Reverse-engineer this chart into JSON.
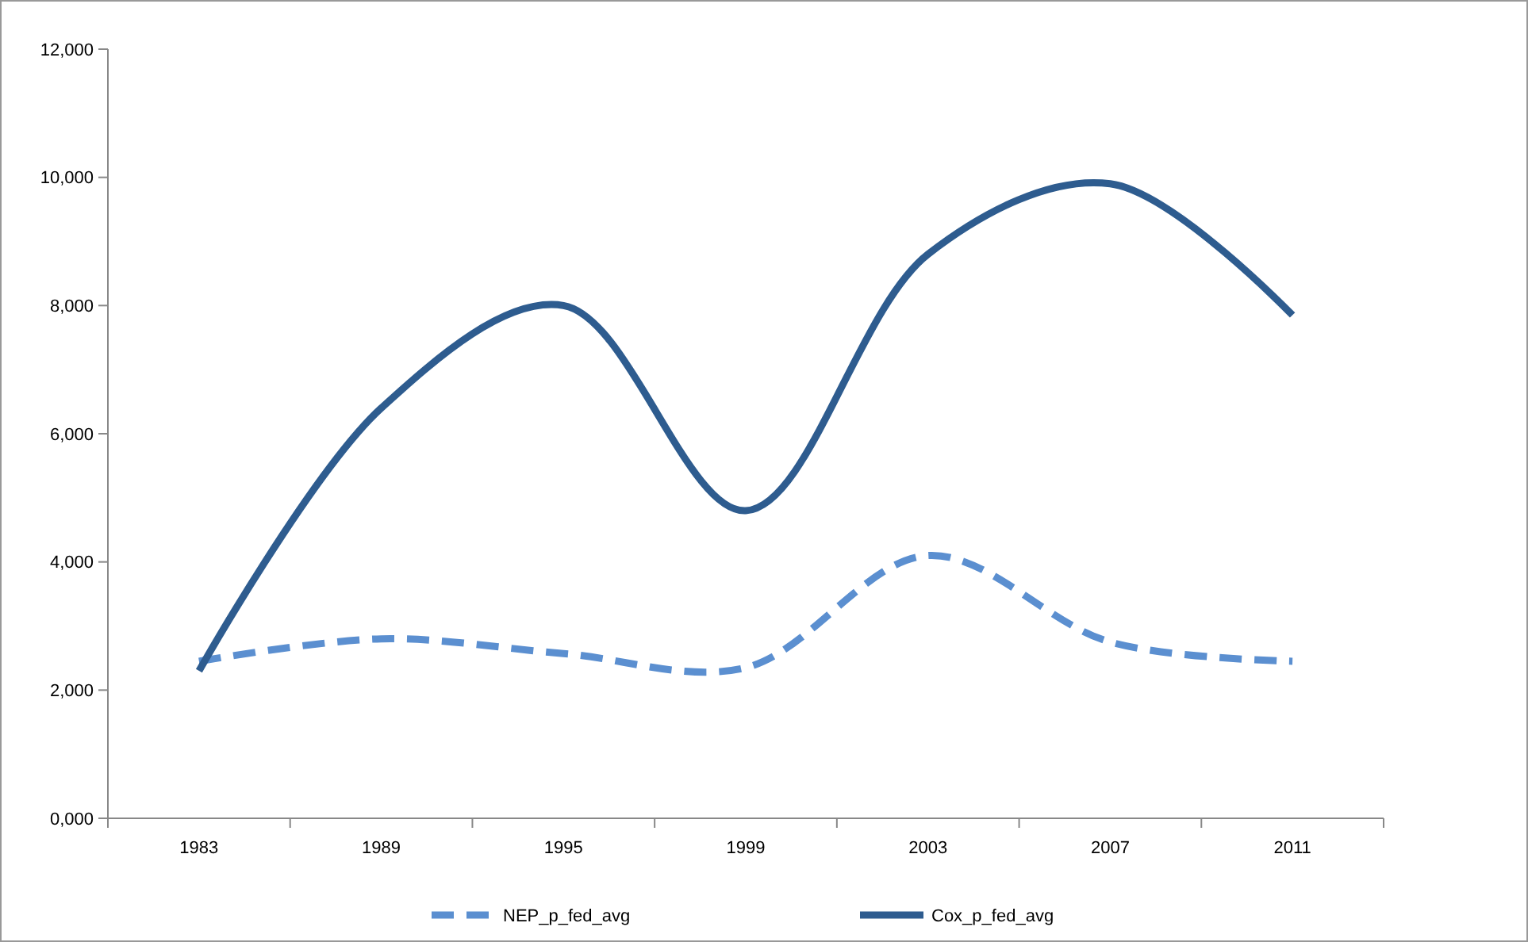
{
  "chart_data": {
    "type": "line",
    "categories": [
      "1983",
      "1989",
      "1995",
      "1999",
      "2003",
      "2007",
      "2011"
    ],
    "series": [
      {
        "name": "NEP_p_fed_avg",
        "color": "#5b8fd0",
        "line_style": "dashed",
        "values": [
          2450,
          2800,
          2570,
          2350,
          4100,
          2750,
          2450
        ]
      },
      {
        "name": "Cox_p_fed_avg",
        "color": "#2e5c8f",
        "line_style": "solid",
        "values": [
          2300,
          6400,
          8000,
          4800,
          8800,
          9900,
          7850
        ]
      }
    ],
    "ylim": [
      0,
      12000
    ],
    "yticks": [
      {
        "value": 0,
        "label": "0,000"
      },
      {
        "value": 2000,
        "label": "2,000"
      },
      {
        "value": 4000,
        "label": "4,000"
      },
      {
        "value": 6000,
        "label": "6,000"
      },
      {
        "value": 8000,
        "label": "8,000"
      },
      {
        "value": 10000,
        "label": "10,000"
      },
      {
        "value": 12000,
        "label": "12,000"
      }
    ],
    "grid": false,
    "legend": "bottom",
    "marker": "none"
  }
}
